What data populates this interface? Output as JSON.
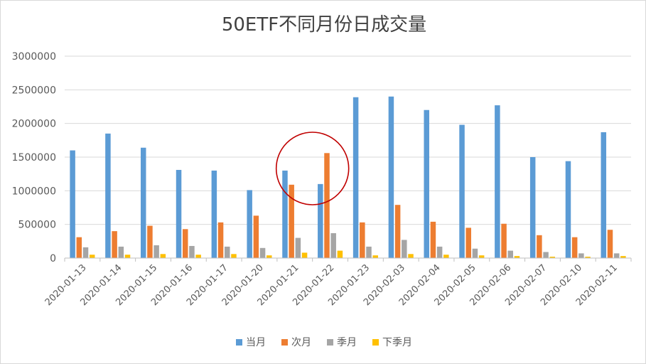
{
  "chart_data": {
    "type": "bar",
    "title": "50ETF不同月份日成交量",
    "xlabel": "",
    "ylabel": "",
    "ylim": [
      0,
      3000000
    ],
    "yticks": [
      "0",
      "500000",
      "1000000",
      "1500000",
      "2000000",
      "2500000",
      "3000000"
    ],
    "grid": true,
    "legend": "bottom",
    "categories": [
      "2020-01-13",
      "2020-01-14",
      "2020-01-15",
      "2020-01-16",
      "2020-01-17",
      "2020-01-20",
      "2020-01-21",
      "2020-01-22",
      "2020-01-23",
      "2020-02-03",
      "2020-02-04",
      "2020-02-05",
      "2020-02-06",
      "2020-02-07",
      "2020-02-10",
      "2020-02-11"
    ],
    "series": [
      {
        "name": "当月",
        "color": "#5b9bd5",
        "values": [
          1600000,
          1850000,
          1640000,
          1310000,
          1300000,
          1010000,
          1300000,
          1100000,
          2390000,
          2400000,
          2200000,
          1980000,
          2270000,
          1500000,
          1440000,
          1870000
        ]
      },
      {
        "name": "次月",
        "color": "#ed7d31",
        "values": [
          310000,
          400000,
          480000,
          430000,
          530000,
          630000,
          1090000,
          1560000,
          530000,
          790000,
          540000,
          450000,
          510000,
          340000,
          310000,
          420000
        ]
      },
      {
        "name": "季月",
        "color": "#a5a5a5",
        "values": [
          160000,
          170000,
          190000,
          180000,
          170000,
          150000,
          300000,
          370000,
          170000,
          270000,
          170000,
          140000,
          110000,
          90000,
          70000,
          70000
        ]
      },
      {
        "name": "下季月",
        "color": "#ffc000",
        "values": [
          50000,
          50000,
          60000,
          50000,
          60000,
          40000,
          80000,
          110000,
          40000,
          60000,
          50000,
          40000,
          30000,
          20000,
          20000,
          30000
        ]
      }
    ],
    "annotation": {
      "shape": "circle",
      "color": "#c00000",
      "around_categories": [
        "2020-01-21",
        "2020-01-22"
      ]
    }
  }
}
